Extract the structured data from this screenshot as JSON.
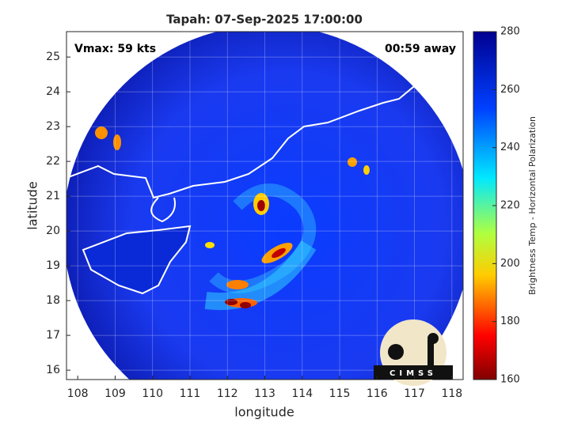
{
  "chart_data": {
    "type": "map",
    "title": "Tapah: 07-Sep-2025 17:00:00",
    "annotations": {
      "vmax": "Vmax: 59 kts",
      "away": "00:59 away"
    },
    "xlabel": "longitude",
    "ylabel": "latitude",
    "xlim": [
      107.7,
      118.3
    ],
    "xticks": [
      108,
      109,
      110,
      111,
      112,
      113,
      114,
      115,
      116,
      117,
      118
    ],
    "ylim": [
      15.73,
      25.73
    ],
    "yticks": [
      16,
      17,
      18,
      19,
      20,
      21,
      22,
      23,
      24,
      25
    ],
    "grid": true,
    "colorbar": {
      "label": "Brightness Temp - Horizontal Polarization",
      "lim": [
        160,
        280
      ],
      "ticks": [
        160,
        180,
        200,
        220,
        240,
        260,
        280
      ]
    },
    "logo": "CIMSS"
  }
}
